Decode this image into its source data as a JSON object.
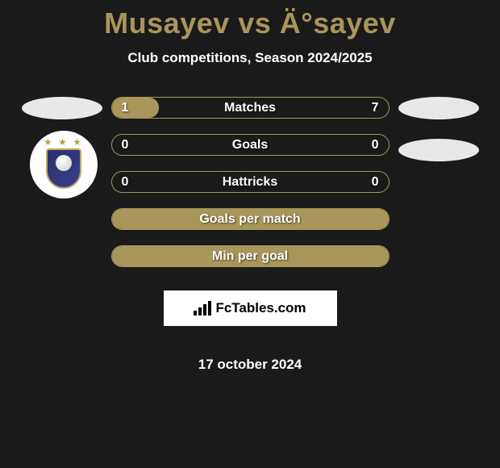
{
  "header": {
    "title": "Musayev vs Ä°sayev",
    "subtitle": "Club competitions, Season 2024/2025"
  },
  "colors": {
    "accent": "#a8965a",
    "background": "#1a1a1a",
    "ellipse": "#e8e8e8",
    "white": "#ffffff"
  },
  "stats": [
    {
      "label": "Matches",
      "left_value": "1",
      "right_value": "7",
      "fill_ratio": 0.17,
      "fill_color": "#a8965a",
      "border_color": "#a8965a"
    },
    {
      "label": "Goals",
      "left_value": "0",
      "right_value": "0",
      "fill_ratio": 0,
      "fill_color": "#a8965a",
      "border_color": "#a8965a"
    },
    {
      "label": "Hattricks",
      "left_value": "0",
      "right_value": "0",
      "fill_ratio": 0,
      "fill_color": "#a8965a",
      "border_color": "#a8965a"
    },
    {
      "label": "Goals per match",
      "left_value": "",
      "right_value": "",
      "fill_ratio": 1,
      "fill_color": "#a8965a",
      "border_color": "#a8965a"
    },
    {
      "label": "Min per goal",
      "left_value": "",
      "right_value": "",
      "fill_ratio": 1,
      "fill_color": "#a8965a",
      "border_color": "#a8965a"
    }
  ],
  "brand": {
    "text": "FcTables.com"
  },
  "date": "17 october 2024"
}
